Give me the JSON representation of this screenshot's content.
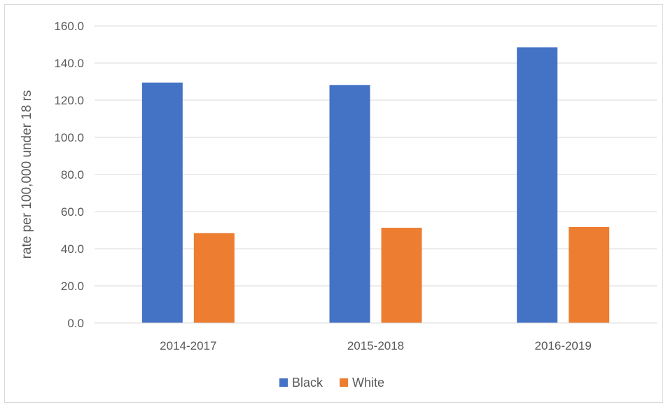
{
  "chart_data": {
    "type": "bar",
    "categories": [
      "2014-2017",
      "2015-2018",
      "2016-2019"
    ],
    "series": [
      {
        "name": "Black",
        "values": [
          129.5,
          128.2,
          148.5
        ],
        "color": "#4472C4"
      },
      {
        "name": "White",
        "values": [
          48.4,
          51.3,
          51.7
        ],
        "color": "#ED7D31"
      }
    ],
    "title": "",
    "xlabel": "",
    "ylabel": "rate per 100,000 under 18 rs",
    "ylim": [
      0,
      160
    ],
    "yticks": [
      "0.0",
      "20.0",
      "40.0",
      "60.0",
      "80.0",
      "100.0",
      "120.0",
      "140.0",
      "160.0"
    ],
    "grid": true,
    "legend_position": "bottom"
  }
}
